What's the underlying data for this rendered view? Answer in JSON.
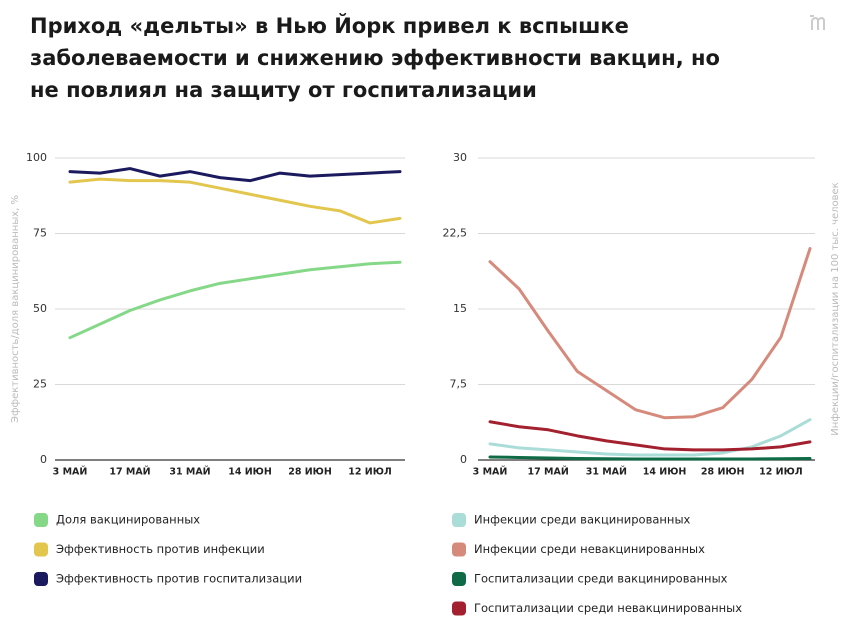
{
  "title": "Приход «дельты» в Нью Йорк привел к вспышке заболеваемости и снижению эффективности вакцин, но не повлиял на защиту от госпитализации",
  "chart_data": [
    {
      "type": "line",
      "y_label": "Эффективность/доля вакцинированных, %",
      "categories": [
        "3 МАЙ",
        null,
        "17 МАЙ",
        null,
        "31 МАЙ",
        null,
        "14 ИЮН",
        null,
        "28 ИЮН",
        null,
        "12 ИЮЛ",
        null
      ],
      "ylim": [
        0,
        100
      ],
      "yticks": [
        0,
        25,
        50,
        75,
        100
      ],
      "grid": true,
      "series": [
        {
          "name": "Доля вакцинированных",
          "color": "#86d889",
          "values": [
            40.5,
            45,
            49.5,
            53,
            56,
            58.5,
            60,
            61.5,
            63,
            64,
            65,
            65.5
          ]
        },
        {
          "name": "Эффективность против инфекции",
          "color": "#e2c64e",
          "values": [
            92,
            93,
            92.5,
            92.5,
            92,
            90,
            88,
            86,
            84,
            82.5,
            78.5,
            80
          ]
        },
        {
          "name": "Эффективность против госпитализации",
          "color": "#1b1a5e",
          "values": [
            95.5,
            95,
            96.5,
            94,
            95.5,
            93.5,
            92.5,
            95,
            94,
            94.5,
            95,
            95.5
          ]
        }
      ]
    },
    {
      "type": "line",
      "y_label": "Инфекции/госпитализации на 100 тыс. человек",
      "categories": [
        "3 МАЙ",
        null,
        "17 МАЙ",
        null,
        "31 МАЙ",
        null,
        "14 ИЮН",
        null,
        "28 ИЮН",
        null,
        "12 ИЮЛ",
        null
      ],
      "ylim": [
        0,
        30
      ],
      "yticks": [
        0,
        {
          "value": 7.5,
          "label": "7,5"
        },
        15,
        {
          "value": 22.5,
          "label": "22,5"
        },
        30
      ],
      "grid": true,
      "series": [
        {
          "name": "Инфекции среди вакцинированных",
          "color": "#aadcd8",
          "values": [
            1.6,
            1.2,
            1.0,
            0.8,
            0.6,
            0.5,
            0.5,
            0.5,
            0.7,
            1.3,
            2.4,
            4.0
          ]
        },
        {
          "name": "Инфекции среди невакцинированных",
          "color": "#d68a7b",
          "values": [
            19.7,
            17,
            12.8,
            8.8,
            6.9,
            5,
            4.2,
            4.3,
            5.2,
            8,
            12.2,
            21
          ]
        },
        {
          "name": "Госпитализации среди вакцинированных",
          "color": "#0e6b46",
          "values": [
            0.3,
            0.25,
            0.2,
            0.15,
            0.12,
            0.1,
            0.1,
            0.1,
            0.1,
            0.1,
            0.12,
            0.15
          ]
        },
        {
          "name": "Госпитализации среди невакцинированных",
          "color": "#a3202e",
          "values": [
            3.8,
            3.3,
            3.0,
            2.4,
            1.9,
            1.5,
            1.1,
            1.0,
            1.0,
            1.1,
            1.3,
            1.8
          ]
        }
      ]
    }
  ]
}
